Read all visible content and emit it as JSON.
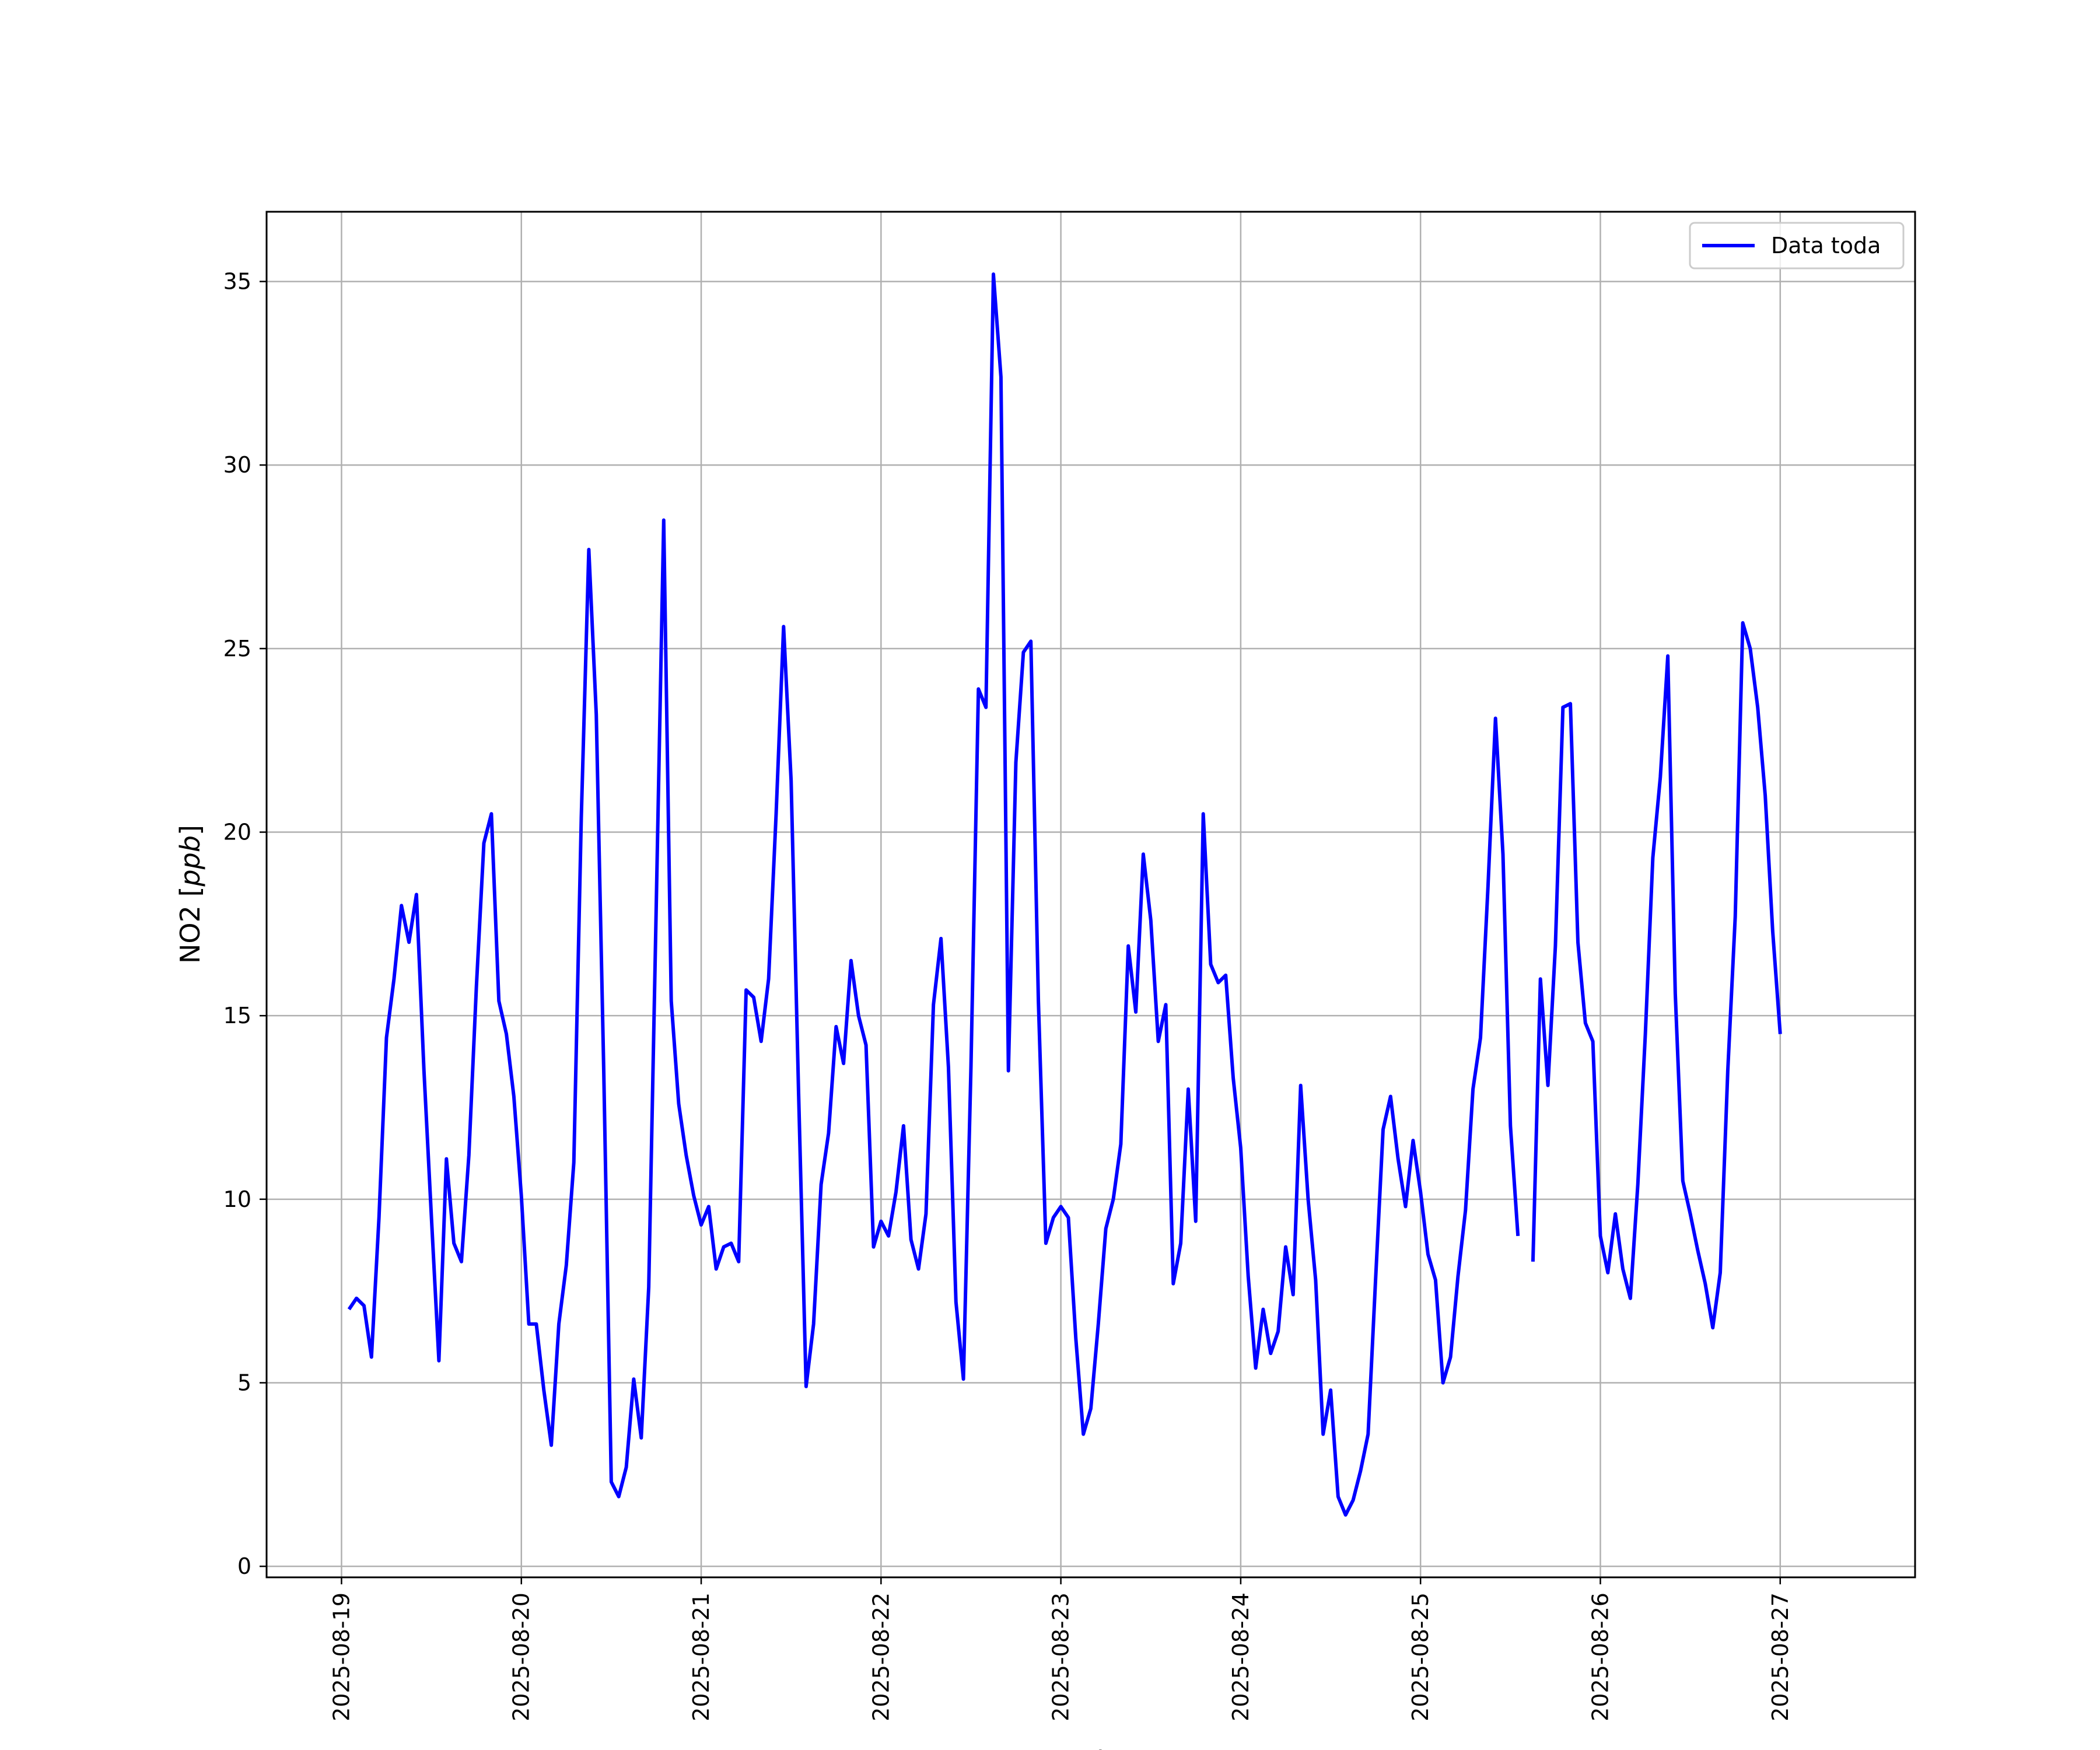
{
  "chart_data": {
    "type": "line",
    "title": "",
    "xlabel": "Fecha",
    "ylabel": "NO2 [ppb]",
    "ylabel_italic_part": "ppb",
    "ylim": [
      -0.3,
      36.9
    ],
    "xlim": [
      "2025-08-18T14:00",
      "2025-08-27T18:00"
    ],
    "yticks": [
      0,
      5,
      10,
      15,
      20,
      25,
      30,
      35
    ],
    "xticks": [
      "2025-08-19",
      "2025-08-20",
      "2025-08-21",
      "2025-08-22",
      "2025-08-23",
      "2025-08-24",
      "2025-08-25",
      "2025-08-26",
      "2025-08-27"
    ],
    "grid": true,
    "legend": {
      "position": "top-right",
      "entries": [
        "Data toda"
      ]
    },
    "series": [
      {
        "name": "Data toda",
        "color": "#0000ff",
        "points": [
          [
            "2025-08-19T01:00",
            7.0
          ],
          [
            "2025-08-19T02:00",
            7.3
          ],
          [
            "2025-08-19T03:00",
            7.1
          ],
          [
            "2025-08-19T04:00",
            5.7
          ],
          [
            "2025-08-19T05:00",
            9.5
          ],
          [
            "2025-08-19T06:00",
            14.4
          ],
          [
            "2025-08-19T07:00",
            16.0
          ],
          [
            "2025-08-19T08:00",
            18.0
          ],
          [
            "2025-08-19T09:00",
            17.0
          ],
          [
            "2025-08-19T10:00",
            18.3
          ],
          [
            "2025-08-19T11:00",
            13.5
          ],
          [
            "2025-08-19T12:00",
            9.5
          ],
          [
            "2025-08-19T13:00",
            5.6
          ],
          [
            "2025-08-19T14:00",
            11.1
          ],
          [
            "2025-08-19T15:00",
            8.8
          ],
          [
            "2025-08-19T16:00",
            8.3
          ],
          [
            "2025-08-19T17:00",
            11.2
          ],
          [
            "2025-08-19T18:00",
            15.8
          ],
          [
            "2025-08-19T19:00",
            19.7
          ],
          [
            "2025-08-19T20:00",
            20.5
          ],
          [
            "2025-08-19T21:00",
            15.4
          ],
          [
            "2025-08-19T22:00",
            14.5
          ],
          [
            "2025-08-19T23:00",
            12.8
          ],
          [
            "2025-08-20T00:00",
            10.1
          ],
          [
            "2025-08-20T01:00",
            6.6
          ],
          [
            "2025-08-20T02:00",
            6.6
          ],
          [
            "2025-08-20T03:00",
            4.8
          ],
          [
            "2025-08-20T04:00",
            3.3
          ],
          [
            "2025-08-20T05:00",
            6.6
          ],
          [
            "2025-08-20T06:00",
            8.2
          ],
          [
            "2025-08-20T07:00",
            11.0
          ],
          [
            "2025-08-20T08:00",
            20.4
          ],
          [
            "2025-08-20T09:00",
            27.7
          ],
          [
            "2025-08-20T10:00",
            23.2
          ],
          [
            "2025-08-20T11:00",
            13.5
          ],
          [
            "2025-08-20T12:00",
            2.3
          ],
          [
            "2025-08-20T13:00",
            1.9
          ],
          [
            "2025-08-20T14:00",
            2.7
          ],
          [
            "2025-08-20T15:00",
            5.1
          ],
          [
            "2025-08-20T16:00",
            3.5
          ],
          [
            "2025-08-20T17:00",
            7.6
          ],
          [
            "2025-08-20T18:00",
            18.0
          ],
          [
            "2025-08-20T19:00",
            28.5
          ],
          [
            "2025-08-20T20:00",
            15.4
          ],
          [
            "2025-08-20T21:00",
            12.6
          ],
          [
            "2025-08-20T22:00",
            11.2
          ],
          [
            "2025-08-20T23:00",
            10.1
          ],
          [
            "2025-08-21T00:00",
            9.3
          ],
          [
            "2025-08-21T01:00",
            9.8
          ],
          [
            "2025-08-21T02:00",
            8.1
          ],
          [
            "2025-08-21T03:00",
            8.7
          ],
          [
            "2025-08-21T04:00",
            8.8
          ],
          [
            "2025-08-21T05:00",
            8.3
          ],
          [
            "2025-08-21T06:00",
            15.7
          ],
          [
            "2025-08-21T07:00",
            15.5
          ],
          [
            "2025-08-21T08:00",
            14.3
          ],
          [
            "2025-08-21T09:00",
            16.0
          ],
          [
            "2025-08-21T10:00",
            20.5
          ],
          [
            "2025-08-21T11:00",
            25.6
          ],
          [
            "2025-08-21T12:00",
            21.4
          ],
          [
            "2025-08-21T13:00",
            12.9
          ],
          [
            "2025-08-21T14:00",
            4.9
          ],
          [
            "2025-08-21T15:00",
            6.6
          ],
          [
            "2025-08-21T16:00",
            10.4
          ],
          [
            "2025-08-21T17:00",
            11.8
          ],
          [
            "2025-08-21T18:00",
            14.7
          ],
          [
            "2025-08-21T19:00",
            13.7
          ],
          [
            "2025-08-21T20:00",
            16.5
          ],
          [
            "2025-08-21T21:00",
            15.0
          ],
          [
            "2025-08-21T22:00",
            14.2
          ],
          [
            "2025-08-21T23:00",
            8.7
          ],
          [
            "2025-08-22T00:00",
            9.4
          ],
          [
            "2025-08-22T01:00",
            9.0
          ],
          [
            "2025-08-22T02:00",
            10.2
          ],
          [
            "2025-08-22T03:00",
            12.0
          ],
          [
            "2025-08-22T04:00",
            8.9
          ],
          [
            "2025-08-22T05:00",
            8.1
          ],
          [
            "2025-08-22T06:00",
            9.6
          ],
          [
            "2025-08-22T07:00",
            15.3
          ],
          [
            "2025-08-22T08:00",
            17.1
          ],
          [
            "2025-08-22T09:00",
            13.6
          ],
          [
            "2025-08-22T10:00",
            7.2
          ],
          [
            "2025-08-22T11:00",
            5.1
          ],
          [
            "2025-08-22T12:00",
            13.6
          ],
          [
            "2025-08-22T13:00",
            23.9
          ],
          [
            "2025-08-22T14:00",
            23.4
          ],
          [
            "2025-08-22T15:00",
            35.2
          ],
          [
            "2025-08-22T16:00",
            32.4
          ],
          [
            "2025-08-22T17:00",
            13.5
          ],
          [
            "2025-08-22T18:00",
            21.9
          ],
          [
            "2025-08-22T19:00",
            24.9
          ],
          [
            "2025-08-22T20:00",
            25.2
          ],
          [
            "2025-08-22T21:00",
            15.4
          ],
          [
            "2025-08-22T22:00",
            8.8
          ],
          [
            "2025-08-22T23:00",
            9.5
          ],
          [
            "2025-08-23T00:00",
            9.8
          ],
          [
            "2025-08-23T01:00",
            9.5
          ],
          [
            "2025-08-23T02:00",
            6.2
          ],
          [
            "2025-08-23T03:00",
            3.6
          ],
          [
            "2025-08-23T04:00",
            4.3
          ],
          [
            "2025-08-23T05:00",
            6.6
          ],
          [
            "2025-08-23T06:00",
            9.2
          ],
          [
            "2025-08-23T07:00",
            10.0
          ],
          [
            "2025-08-23T08:00",
            11.5
          ],
          [
            "2025-08-23T09:00",
            16.9
          ],
          [
            "2025-08-23T10:00",
            15.1
          ],
          [
            "2025-08-23T11:00",
            19.4
          ],
          [
            "2025-08-23T12:00",
            17.6
          ],
          [
            "2025-08-23T13:00",
            14.3
          ],
          [
            "2025-08-23T14:00",
            15.3
          ],
          [
            "2025-08-23T15:00",
            7.7
          ],
          [
            "2025-08-23T16:00",
            8.8
          ],
          [
            "2025-08-23T17:00",
            13.0
          ],
          [
            "2025-08-23T18:00",
            9.4
          ],
          [
            "2025-08-23T19:00",
            20.5
          ],
          [
            "2025-08-23T20:00",
            16.4
          ],
          [
            "2025-08-23T21:00",
            15.9
          ],
          [
            "2025-08-23T22:00",
            16.1
          ],
          [
            "2025-08-23T23:00",
            13.3
          ],
          [
            "2025-08-24T00:00",
            11.4
          ],
          [
            "2025-08-24T01:00",
            7.9
          ],
          [
            "2025-08-24T02:00",
            5.4
          ],
          [
            "2025-08-24T03:00",
            7.0
          ],
          [
            "2025-08-24T04:00",
            5.8
          ],
          [
            "2025-08-24T05:00",
            6.4
          ],
          [
            "2025-08-24T06:00",
            8.7
          ],
          [
            "2025-08-24T07:00",
            7.4
          ],
          [
            "2025-08-24T08:00",
            13.1
          ],
          [
            "2025-08-24T09:00",
            10.0
          ],
          [
            "2025-08-24T10:00",
            7.8
          ],
          [
            "2025-08-24T11:00",
            3.6
          ],
          [
            "2025-08-24T12:00",
            4.8
          ],
          [
            "2025-08-24T13:00",
            1.9
          ],
          [
            "2025-08-24T14:00",
            1.4
          ],
          [
            "2025-08-24T15:00",
            1.8
          ],
          [
            "2025-08-24T16:00",
            2.6
          ],
          [
            "2025-08-24T17:00",
            3.6
          ],
          [
            "2025-08-24T18:00",
            7.8
          ],
          [
            "2025-08-24T19:00",
            11.9
          ],
          [
            "2025-08-24T20:00",
            12.8
          ],
          [
            "2025-08-24T21:00",
            11.1
          ],
          [
            "2025-08-24T22:00",
            9.8
          ],
          [
            "2025-08-24T23:00",
            11.6
          ],
          [
            "2025-08-25T00:00",
            10.2
          ],
          [
            "2025-08-25T01:00",
            8.5
          ],
          [
            "2025-08-25T02:00",
            7.8
          ],
          [
            "2025-08-25T03:00",
            5.0
          ],
          [
            "2025-08-25T04:00",
            5.7
          ],
          [
            "2025-08-25T05:00",
            7.9
          ],
          [
            "2025-08-25T06:00",
            9.7
          ],
          [
            "2025-08-25T07:00",
            13.0
          ],
          [
            "2025-08-25T08:00",
            14.4
          ],
          [
            "2025-08-25T09:00",
            18.5
          ],
          [
            "2025-08-25T10:00",
            23.1
          ],
          [
            "2025-08-25T11:00",
            19.4
          ],
          [
            "2025-08-25T12:00",
            12.0
          ],
          [
            "2025-08-25T13:00",
            9.0
          ],
          null,
          [
            "2025-08-25T15:00",
            8.3
          ],
          [
            "2025-08-25T16:00",
            16.0
          ],
          [
            "2025-08-25T17:00",
            13.1
          ],
          [
            "2025-08-25T18:00",
            16.9
          ],
          [
            "2025-08-25T19:00",
            23.4
          ],
          [
            "2025-08-25T20:00",
            23.5
          ],
          [
            "2025-08-25T21:00",
            17.0
          ],
          [
            "2025-08-25T22:00",
            14.8
          ],
          [
            "2025-08-25T23:00",
            14.3
          ],
          [
            "2025-08-26T00:00",
            9.0
          ],
          [
            "2025-08-26T01:00",
            8.0
          ],
          [
            "2025-08-26T02:00",
            9.6
          ],
          [
            "2025-08-26T03:00",
            8.1
          ],
          [
            "2025-08-26T04:00",
            7.3
          ],
          [
            "2025-08-26T05:00",
            10.4
          ],
          [
            "2025-08-26T06:00",
            14.5
          ],
          [
            "2025-08-26T07:00",
            19.3
          ],
          [
            "2025-08-26T08:00",
            21.5
          ],
          [
            "2025-08-26T09:00",
            24.8
          ],
          [
            "2025-08-26T10:00",
            15.6
          ],
          [
            "2025-08-26T11:00",
            10.5
          ],
          [
            "2025-08-26T12:00",
            9.6
          ],
          [
            "2025-08-26T13:00",
            8.6
          ],
          [
            "2025-08-26T14:00",
            7.7
          ],
          [
            "2025-08-26T15:00",
            6.5
          ],
          [
            "2025-08-26T16:00",
            8.0
          ],
          [
            "2025-08-26T17:00",
            13.5
          ],
          [
            "2025-08-26T18:00",
            17.7
          ],
          [
            "2025-08-26T19:00",
            25.7
          ],
          [
            "2025-08-26T20:00",
            25.0
          ],
          [
            "2025-08-26T21:00",
            23.4
          ],
          [
            "2025-08-26T22:00",
            21.0
          ],
          [
            "2025-08-26T23:00",
            17.3
          ],
          [
            "2025-08-27T00:00",
            14.5
          ]
        ]
      }
    ]
  }
}
